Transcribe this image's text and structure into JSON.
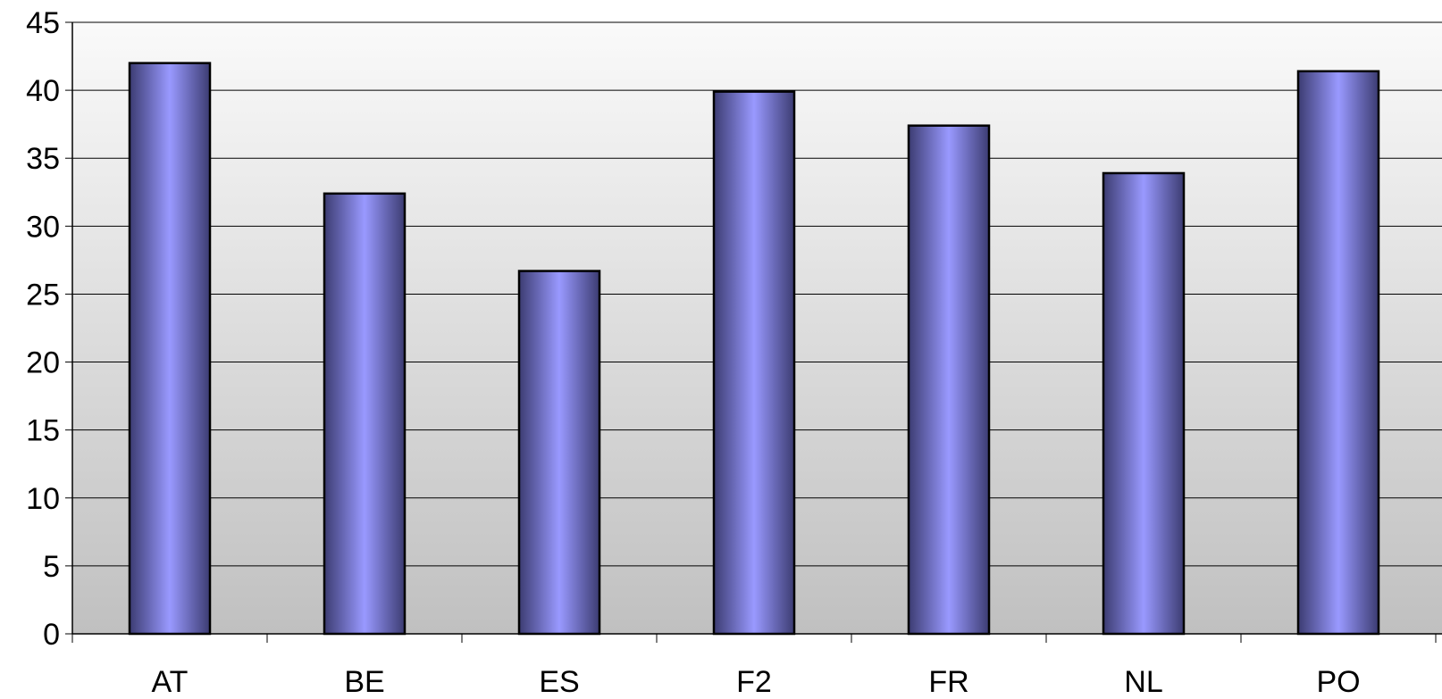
{
  "chart_data": {
    "type": "bar",
    "title": "",
    "xlabel": "",
    "ylabel": "",
    "categories": [
      "AT",
      "BE",
      "ES",
      "F2",
      "FR",
      "NL",
      "PO"
    ],
    "values": [
      42.0,
      32.4,
      26.7,
      39.9,
      37.4,
      33.9,
      41.4
    ],
    "ylim": [
      0,
      45
    ],
    "yticks": [
      "0",
      "5",
      "10",
      "15",
      "20",
      "25",
      "30",
      "35",
      "40",
      "45"
    ],
    "grid": true,
    "legend": "none",
    "colors": {
      "bar_center": "#9999ff",
      "bar_edge": "#3c3c72",
      "bar_outline": "#000000",
      "plot_bg_top": "#fafafa",
      "plot_bg_bottom": "#c0c0c0",
      "gridline": "#000000"
    }
  }
}
